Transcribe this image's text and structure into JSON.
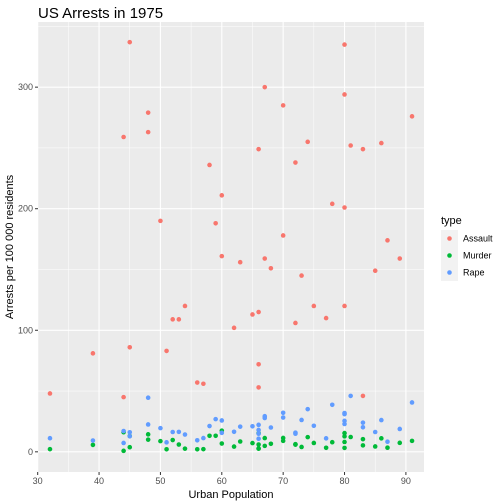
{
  "chart_data": {
    "type": "scatter",
    "title": "US Arrests in 1975",
    "xlabel": "Urban Population",
    "ylabel": "Arrests per 100 000 residents",
    "xlim": [
      30.05,
      92.95
    ],
    "ylim": [
      -16.6,
      353.6
    ],
    "x_ticks": [
      30,
      40,
      50,
      60,
      70,
      80,
      90
    ],
    "y_ticks": [
      0,
      100,
      200,
      300
    ],
    "grid": true,
    "legend": {
      "title": "type",
      "position": "right"
    },
    "x": [
      58,
      48,
      80,
      50,
      91,
      78,
      77,
      72,
      80,
      60,
      83,
      54,
      83,
      65,
      57,
      66,
      52,
      66,
      51,
      67,
      85,
      74,
      66,
      44,
      70,
      53,
      62,
      81,
      56,
      89,
      70,
      86,
      45,
      44,
      75,
      68,
      67,
      72,
      87,
      48,
      45,
      59,
      80,
      80,
      32,
      63,
      73,
      39,
      66,
      60
    ],
    "series": [
      {
        "name": "Assault",
        "color": "#F8766D",
        "values": [
          236,
          263,
          294,
          190,
          276,
          204,
          110,
          238,
          335,
          211,
          46,
          120,
          249,
          113,
          56,
          115,
          109,
          249,
          83,
          300,
          149,
          255,
          72,
          259,
          178,
          109,
          102,
          252,
          57,
          159,
          285,
          254,
          337,
          45,
          120,
          151,
          159,
          106,
          174,
          279,
          86,
          188,
          201,
          120,
          48,
          156,
          145,
          81,
          53,
          161
        ]
      },
      {
        "name": "Murder",
        "color": "#00BA38",
        "values": [
          13.2,
          10,
          8.1,
          8.8,
          9,
          7.9,
          3.3,
          5.9,
          15.4,
          17.4,
          5.3,
          2.6,
          10.4,
          7.2,
          2.2,
          6,
          9.7,
          15.4,
          2.1,
          11.3,
          4.4,
          12.1,
          2.7,
          16.1,
          9,
          6,
          4.3,
          12.2,
          2.1,
          7.4,
          11.4,
          11.1,
          13,
          0.8,
          7.3,
          6.6,
          4.9,
          6.3,
          3.4,
          14.4,
          3.8,
          13.2,
          12.7,
          3.2,
          2.2,
          8.5,
          4,
          5.7,
          2.6,
          6.8
        ]
      },
      {
        "name": "Rape",
        "color": "#619CFF",
        "values": [
          21.2,
          44.5,
          31,
          19.5,
          40.6,
          38.7,
          11.1,
          15.8,
          31.9,
          25.8,
          20.2,
          14.2,
          24,
          21,
          11.3,
          18,
          16.3,
          22.2,
          7.8,
          27.8,
          16.3,
          35.1,
          14.9,
          17.1,
          28.2,
          16.4,
          16.5,
          46,
          9.5,
          18.8,
          32.1,
          26.1,
          16.1,
          7.3,
          21.4,
          20,
          29.3,
          14.9,
          8.3,
          22.5,
          12.8,
          26.9,
          25.5,
          22.9,
          11.2,
          20.7,
          26.2,
          9.3,
          10.8,
          15.6
        ]
      }
    ]
  }
}
